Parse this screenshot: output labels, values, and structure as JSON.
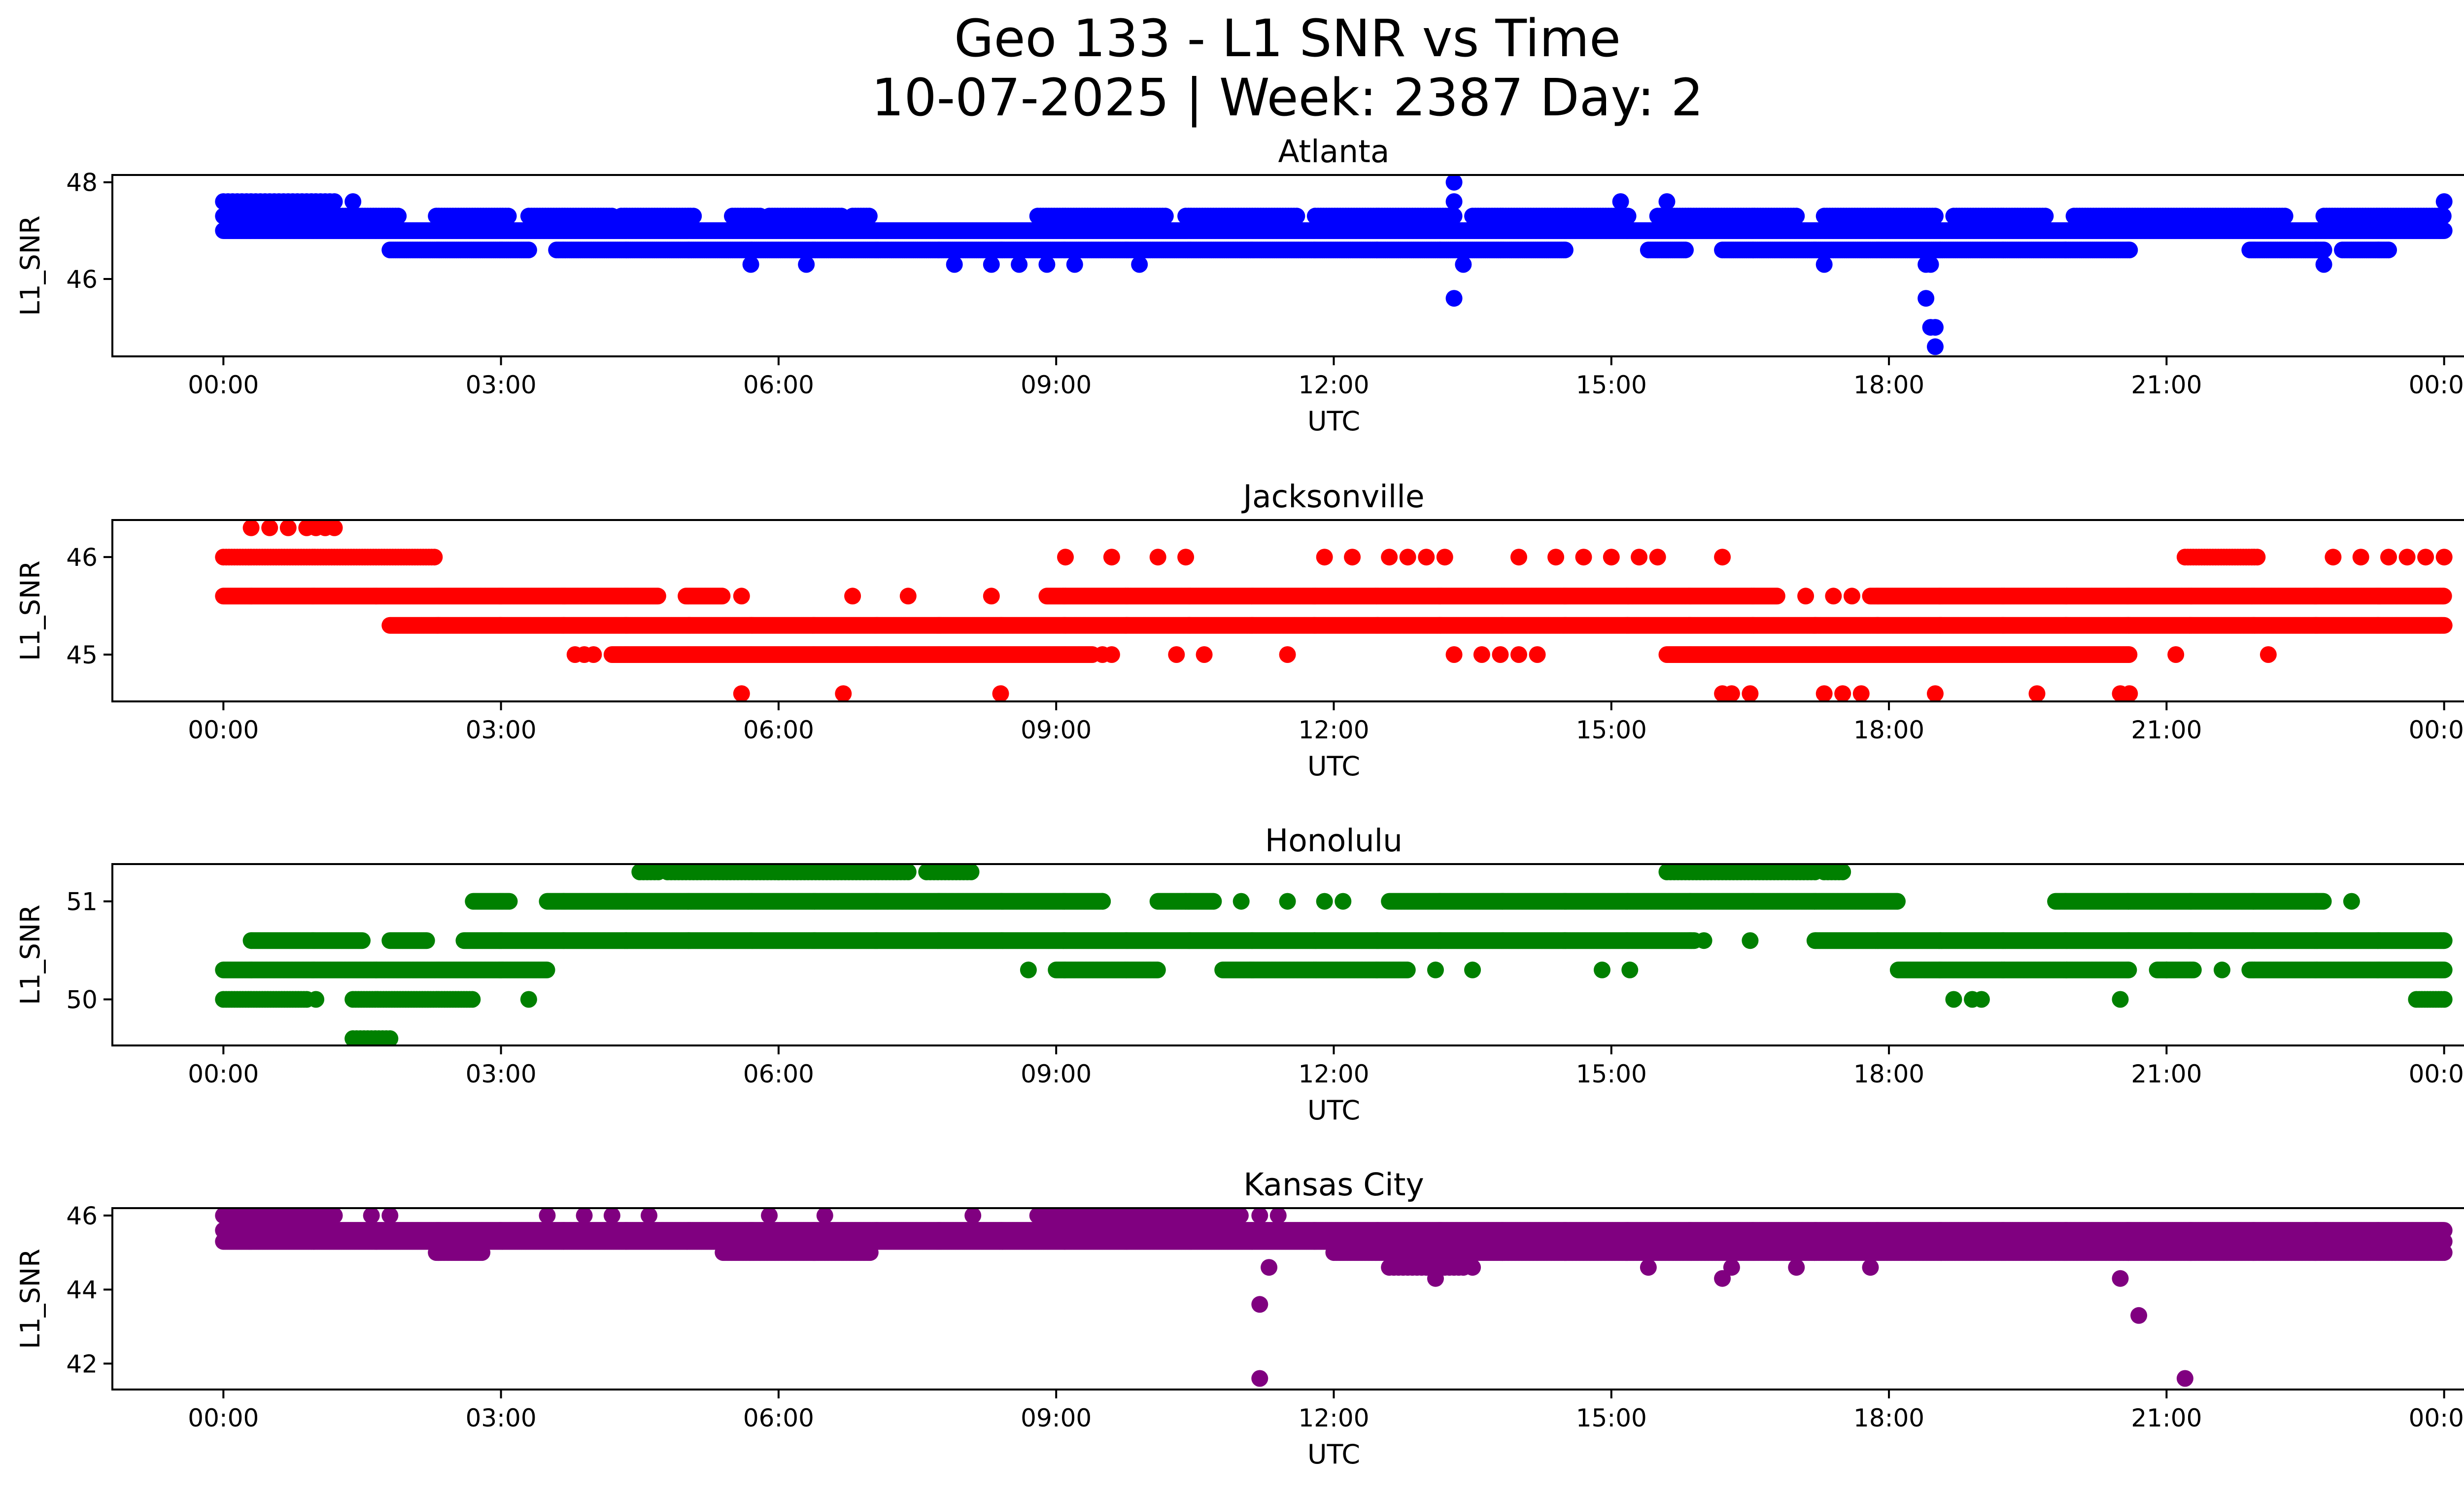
{
  "figure": {
    "title_line1": "Geo 133 - L1 SNR vs Time",
    "title_line2": "10-07-2025 | Week: 2387 Day: 2"
  },
  "chart_data": [
    {
      "type": "scatter",
      "title": "Atlanta",
      "xlabel": "UTC",
      "ylabel": "L1_SNR",
      "color": "#0000ff",
      "x_unit": "hours UTC",
      "xlim": [
        -1.2,
        25.2
      ],
      "ylim": [
        44.4,
        48.15
      ],
      "xticks": [
        0,
        3,
        6,
        9,
        12,
        15,
        18,
        21,
        24
      ],
      "xtick_labels": [
        "00:00",
        "03:00",
        "06:00",
        "09:00",
        "12:00",
        "15:00",
        "18:00",
        "21:00",
        "00:00"
      ],
      "yticks": [
        46,
        48
      ],
      "ytick_labels": [
        "46",
        "48"
      ],
      "bands": [
        {
          "y": 47.3,
          "ranges": [
            [
              0,
              1.9
            ],
            [
              2.3,
              3.1
            ],
            [
              3.3,
              4.2
            ],
            [
              4.3,
              5.1
            ],
            [
              5.5,
              5.8
            ],
            [
              5.9,
              6.7
            ],
            [
              6.8,
              7.0
            ],
            [
              8.8,
              10.2
            ],
            [
              10.4,
              11.6
            ],
            [
              11.8,
              13.3
            ],
            [
              13.5,
              15.2
            ],
            [
              15.5,
              17.0
            ],
            [
              17.3,
              18.5
            ],
            [
              18.7,
              19.7
            ],
            [
              20.0,
              22.3
            ],
            [
              22.7,
              24.0
            ]
          ],
          "step": 0.03
        },
        {
          "y": 47.0,
          "ranges": [
            [
              0,
              24.0
            ]
          ],
          "step": 0.012
        },
        {
          "y": 46.6,
          "ranges": [
            [
              1.8,
              3.3
            ],
            [
              3.6,
              14.5
            ],
            [
              15.4,
              15.8
            ],
            [
              16.2,
              20.6
            ],
            [
              21.9,
              22.7
            ],
            [
              22.9,
              23.4
            ]
          ],
          "step": 0.02
        },
        {
          "y": 47.6,
          "ranges": [
            [
              0,
              1.2
            ]
          ],
          "step": 0.05
        }
      ],
      "points": [
        [
          1.4,
          47.6
        ],
        [
          5.7,
          46.3
        ],
        [
          6.3,
          46.3
        ],
        [
          7.9,
          46.3
        ],
        [
          8.3,
          46.3
        ],
        [
          8.6,
          46.3
        ],
        [
          8.9,
          46.3
        ],
        [
          9.2,
          46.3
        ],
        [
          9.9,
          46.3
        ],
        [
          13.3,
          48.0
        ],
        [
          13.3,
          47.6
        ],
        [
          13.3,
          45.6
        ],
        [
          13.4,
          46.3
        ],
        [
          15.1,
          47.6
        ],
        [
          15.6,
          47.6
        ],
        [
          17.3,
          46.3
        ],
        [
          18.4,
          46.3
        ],
        [
          18.45,
          46.3
        ],
        [
          18.4,
          45.6
        ],
        [
          18.45,
          45.0
        ],
        [
          18.5,
          45.0
        ],
        [
          18.5,
          44.6
        ],
        [
          22.7,
          46.3
        ],
        [
          24.0,
          47.6
        ]
      ]
    },
    {
      "type": "scatter",
      "title": "Jacksonville",
      "xlabel": "UTC",
      "ylabel": "L1_SNR",
      "color": "#ff0000",
      "x_unit": "hours UTC",
      "xlim": [
        -1.2,
        25.2
      ],
      "ylim": [
        44.52,
        46.38
      ],
      "xticks": [
        0,
        3,
        6,
        9,
        12,
        15,
        18,
        21,
        24
      ],
      "xtick_labels": [
        "00:00",
        "03:00",
        "06:00",
        "09:00",
        "12:00",
        "15:00",
        "18:00",
        "21:00",
        "00:00"
      ],
      "yticks": [
        45,
        46
      ],
      "ytick_labels": [
        "45",
        "46"
      ],
      "bands": [
        {
          "y": 46.0,
          "ranges": [
            [
              0,
              2.3
            ],
            [
              21.2,
              22.0
            ]
          ],
          "step": 0.03
        },
        {
          "y": 45.6,
          "ranges": [
            [
              0,
              4.7
            ],
            [
              5.0,
              5.4
            ],
            [
              8.9,
              16.8
            ],
            [
              17.8,
              24.0
            ]
          ],
          "step": 0.015
        },
        {
          "y": 45.3,
          "ranges": [
            [
              1.8,
              24.0
            ]
          ],
          "step": 0.012
        },
        {
          "y": 45.0,
          "ranges": [
            [
              4.2,
              9.4
            ],
            [
              15.6,
              20.6
            ]
          ],
          "step": 0.015
        }
      ],
      "points": [
        [
          0.3,
          46.3
        ],
        [
          0.5,
          46.3
        ],
        [
          0.7,
          46.3
        ],
        [
          0.9,
          46.3
        ],
        [
          1.0,
          46.3
        ],
        [
          1.1,
          46.3
        ],
        [
          1.2,
          46.3
        ],
        [
          3.8,
          45.0
        ],
        [
          3.9,
          45.0
        ],
        [
          4.0,
          45.0
        ],
        [
          5.6,
          45.6
        ],
        [
          6.8,
          45.6
        ],
        [
          7.4,
          45.6
        ],
        [
          8.3,
          45.6
        ],
        [
          9.5,
          45.0
        ],
        [
          9.6,
          45.0
        ],
        [
          5.6,
          44.6
        ],
        [
          6.7,
          44.6
        ],
        [
          8.4,
          44.6
        ],
        [
          9.1,
          46.0
        ],
        [
          9.6,
          46.0
        ],
        [
          10.1,
          46.0
        ],
        [
          10.4,
          46.0
        ],
        [
          10.3,
          45.0
        ],
        [
          10.6,
          45.0
        ],
        [
          11.5,
          45.0
        ],
        [
          11.9,
          46.0
        ],
        [
          12.2,
          46.0
        ],
        [
          12.6,
          46.0
        ],
        [
          12.8,
          46.0
        ],
        [
          13.0,
          46.0
        ],
        [
          13.2,
          46.0
        ],
        [
          13.3,
          45.0
        ],
        [
          13.6,
          45.0
        ],
        [
          13.8,
          45.0
        ],
        [
          14.0,
          45.0
        ],
        [
          14.2,
          45.0
        ],
        [
          14.0,
          46.0
        ],
        [
          14.4,
          46.0
        ],
        [
          14.7,
          46.0
        ],
        [
          15.0,
          46.0
        ],
        [
          15.3,
          46.0
        ],
        [
          15.5,
          46.0
        ],
        [
          16.2,
          46.0
        ],
        [
          17.1,
          45.6
        ],
        [
          17.4,
          45.6
        ],
        [
          17.6,
          45.6
        ],
        [
          16.2,
          44.6
        ],
        [
          16.3,
          44.6
        ],
        [
          16.5,
          44.6
        ],
        [
          17.3,
          44.6
        ],
        [
          17.5,
          44.6
        ],
        [
          17.7,
          44.6
        ],
        [
          18.5,
          44.6
        ],
        [
          19.6,
          44.6
        ],
        [
          20.5,
          44.6
        ],
        [
          20.6,
          44.6
        ],
        [
          21.1,
          45.0
        ],
        [
          22.1,
          45.0
        ],
        [
          22.8,
          46.0
        ],
        [
          23.1,
          46.0
        ],
        [
          23.4,
          46.0
        ],
        [
          23.6,
          46.0
        ],
        [
          23.8,
          46.0
        ],
        [
          24.0,
          46.0
        ]
      ]
    },
    {
      "type": "scatter",
      "title": "Honolulu",
      "xlabel": "UTC",
      "ylabel": "L1_SNR",
      "color": "#008000",
      "x_unit": "hours UTC",
      "xlim": [
        -1.2,
        25.2
      ],
      "ylim": [
        49.53,
        51.38
      ],
      "xticks": [
        0,
        3,
        6,
        9,
        12,
        15,
        18,
        21,
        24
      ],
      "xtick_labels": [
        "00:00",
        "03:00",
        "06:00",
        "09:00",
        "12:00",
        "15:00",
        "18:00",
        "21:00",
        "00:00"
      ],
      "yticks": [
        50,
        51
      ],
      "ytick_labels": [
        "50",
        "51"
      ],
      "bands": [
        {
          "y": 51.3,
          "ranges": [
            [
              4.5,
              4.7
            ],
            [
              4.8,
              6.0
            ],
            [
              6.0,
              7.4
            ],
            [
              7.6,
              8.1
            ],
            [
              15.6,
              17.2
            ],
            [
              17.3,
              17.5
            ]
          ],
          "step": 0.04
        },
        {
          "y": 51.0,
          "ranges": [
            [
              2.7,
              3.1
            ],
            [
              3.5,
              9.5
            ],
            [
              10.1,
              10.7
            ],
            [
              12.6,
              18.1
            ],
            [
              19.8,
              22.7
            ]
          ],
          "step": 0.015
        },
        {
          "y": 50.6,
          "ranges": [
            [
              0.3,
              1.5
            ],
            [
              1.8,
              2.2
            ],
            [
              2.6,
              15.9
            ],
            [
              17.2,
              24.0
            ]
          ],
          "step": 0.012
        },
        {
          "y": 50.3,
          "ranges": [
            [
              0,
              3.5
            ],
            [
              9.0,
              10.1
            ],
            [
              10.8,
              12.8
            ],
            [
              18.1,
              20.6
            ],
            [
              20.9,
              21.3
            ],
            [
              21.9,
              24.0
            ]
          ],
          "step": 0.015
        },
        {
          "y": 50.0,
          "ranges": [
            [
              0,
              0.9
            ],
            [
              1.4,
              2.7
            ],
            [
              23.7,
              24.0
            ]
          ],
          "step": 0.03
        },
        {
          "y": 49.6,
          "ranges": [
            [
              1.4,
              1.8
            ]
          ],
          "step": 0.04
        }
      ],
      "points": [
        [
          3.3,
          50.0
        ],
        [
          1.0,
          50.0
        ],
        [
          8.7,
          50.3
        ],
        [
          9.5,
          51.0
        ],
        [
          10.4,
          51.0
        ],
        [
          11.0,
          51.0
        ],
        [
          11.5,
          51.0
        ],
        [
          11.9,
          51.0
        ],
        [
          12.1,
          51.0
        ],
        [
          13.1,
          50.3
        ],
        [
          13.5,
          50.3
        ],
        [
          14.9,
          50.3
        ],
        [
          15.2,
          50.3
        ],
        [
          16.0,
          50.6
        ],
        [
          16.5,
          50.6
        ],
        [
          18.7,
          50.0
        ],
        [
          18.9,
          50.0
        ],
        [
          19.0,
          50.0
        ],
        [
          20.5,
          50.0
        ],
        [
          21.0,
          50.3
        ],
        [
          21.6,
          50.3
        ],
        [
          23.0,
          51.0
        ],
        [
          24.0,
          50.6
        ]
      ]
    },
    {
      "type": "scatter",
      "title": "Kansas City",
      "xlabel": "UTC",
      "ylabel": "L1_SNR",
      "color": "#800080",
      "x_unit": "hours UTC",
      "xlim": [
        -1.2,
        25.2
      ],
      "ylim": [
        41.3,
        46.2
      ],
      "xticks": [
        0,
        3,
        6,
        9,
        12,
        15,
        18,
        21,
        24
      ],
      "xtick_labels": [
        "00:00",
        "03:00",
        "06:00",
        "09:00",
        "12:00",
        "15:00",
        "18:00",
        "21:00",
        "00:00"
      ],
      "yticks": [
        42,
        44,
        46
      ],
      "ytick_labels": [
        "42",
        "44",
        "46"
      ],
      "bands": [
        {
          "y": 46.0,
          "ranges": [
            [
              0,
              1.2
            ],
            [
              8.8,
              11.0
            ]
          ],
          "step": 0.03
        },
        {
          "y": 45.6,
          "ranges": [
            [
              0,
              24.0
            ]
          ],
          "step": 0.012
        },
        {
          "y": 45.3,
          "ranges": [
            [
              0,
              24.0
            ]
          ],
          "step": 0.012
        },
        {
          "y": 45.0,
          "ranges": [
            [
              2.3,
              2.8
            ],
            [
              5.4,
              7.0
            ],
            [
              12.0,
              24.0
            ]
          ],
          "step": 0.015
        },
        {
          "y": 44.6,
          "ranges": [
            [
              12.6,
              13.4
            ]
          ],
          "step": 0.05
        }
      ],
      "points": [
        [
          3.5,
          46.0
        ],
        [
          3.9,
          46.0
        ],
        [
          4.2,
          46.0
        ],
        [
          4.6,
          46.0
        ],
        [
          1.6,
          46.0
        ],
        [
          1.8,
          46.0
        ],
        [
          5.9,
          46.0
        ],
        [
          6.5,
          46.0
        ],
        [
          8.1,
          46.0
        ],
        [
          11.2,
          46.0
        ],
        [
          11.4,
          46.0
        ],
        [
          11.2,
          43.6
        ],
        [
          11.2,
          41.6
        ],
        [
          11.3,
          44.6
        ],
        [
          13.1,
          44.3
        ],
        [
          13.5,
          44.6
        ],
        [
          15.4,
          44.6
        ],
        [
          16.2,
          44.3
        ],
        [
          16.3,
          44.6
        ],
        [
          17.0,
          44.6
        ],
        [
          17.8,
          44.6
        ],
        [
          20.5,
          44.3
        ],
        [
          20.7,
          43.3
        ],
        [
          21.2,
          41.6
        ]
      ]
    }
  ]
}
